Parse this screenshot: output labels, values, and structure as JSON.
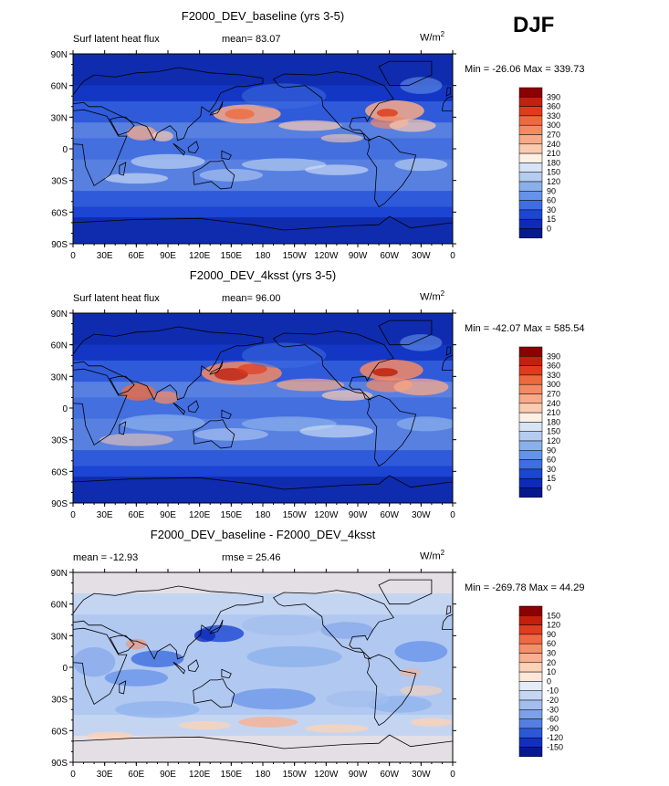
{
  "season": "DJF",
  "units": "W/m",
  "units_sup": "2",
  "lat_ticks": [
    "90N",
    "60N",
    "30N",
    "0",
    "30S",
    "60S",
    "90S"
  ],
  "lon_ticks": [
    "0",
    "30E",
    "60E",
    "90E",
    "120E",
    "150E",
    "180",
    "150W",
    "120W",
    "90W",
    "60W",
    "30W",
    "0"
  ],
  "panels": [
    {
      "title": "F2000_DEV_baseline (yrs 3-5)",
      "left_label": "Surf latent heat flux",
      "mid_label": "mean=  83.07",
      "minmax": "Min = -26.06 Max = 339.73",
      "colorbar_levels": [
        "390",
        "360",
        "330",
        "300",
        "270",
        "240",
        "210",
        "180",
        "150",
        "120",
        "90",
        "60",
        "30",
        "15",
        "0"
      ],
      "colorbar_colors": [
        "#8b0000",
        "#c0220f",
        "#de3c1c",
        "#ee6a3e",
        "#f48a64",
        "#f8aa88",
        "#fbcbb0",
        "#fdf0e4",
        "#d7e4f6",
        "#b4ccf0",
        "#8ab0ec",
        "#6592ea",
        "#3f6ee0",
        "#1b46d2",
        "#0d2bb8",
        "#061890"
      ],
      "chart_data": {
        "type": "heatmap",
        "variable": "Surf latent heat flux",
        "mean": 83.07,
        "min": -26.06,
        "max": 339.73,
        "season": "DJF",
        "scale": "sequential"
      }
    },
    {
      "title": "F2000_DEV_4ksst (yrs 3-5)",
      "left_label": "Surf latent heat flux",
      "mid_label": "mean=  96.00",
      "minmax": "Min = -42.07 Max = 585.54",
      "colorbar_levels": [
        "390",
        "360",
        "330",
        "300",
        "270",
        "240",
        "210",
        "180",
        "150",
        "120",
        "90",
        "60",
        "30",
        "15",
        "0"
      ],
      "colorbar_colors": [
        "#8b0000",
        "#c0220f",
        "#de3c1c",
        "#ee6a3e",
        "#f48a64",
        "#f8aa88",
        "#fbcbb0",
        "#fdf0e4",
        "#d7e4f6",
        "#b4ccf0",
        "#8ab0ec",
        "#6592ea",
        "#3f6ee0",
        "#1b46d2",
        "#0d2bb8",
        "#061890"
      ],
      "chart_data": {
        "type": "heatmap",
        "variable": "Surf latent heat flux",
        "mean": 96.0,
        "min": -42.07,
        "max": 585.54,
        "season": "DJF",
        "scale": "sequential"
      }
    },
    {
      "title": "F2000_DEV_baseline - F2000_DEV_4ksst",
      "left_label": "mean = -12.93",
      "mid_label": "rmse =  25.46",
      "minmax": "Min = -269.78 Max =  44.29",
      "colorbar_levels": [
        "150",
        "120",
        "90",
        "60",
        "30",
        "20",
        "10",
        "0",
        "-10",
        "-20",
        "-30",
        "-60",
        "-90",
        "-120",
        "-150"
      ],
      "colorbar_colors": [
        "#8b0000",
        "#c41e0c",
        "#e03c20",
        "#ef6a44",
        "#f58f6a",
        "#f9b090",
        "#fcd2b8",
        "#fde8d8",
        "#e4ecf8",
        "#c4d6f2",
        "#a2bdee",
        "#7ca0ea",
        "#557ee2",
        "#2c58d8",
        "#1230c0",
        "#061a90"
      ],
      "chart_data": {
        "type": "heatmap",
        "variable": "difference",
        "mean": -12.93,
        "rmse": 25.46,
        "min": -269.78,
        "max": 44.29,
        "season": "DJF",
        "scale": "diverging"
      }
    }
  ]
}
